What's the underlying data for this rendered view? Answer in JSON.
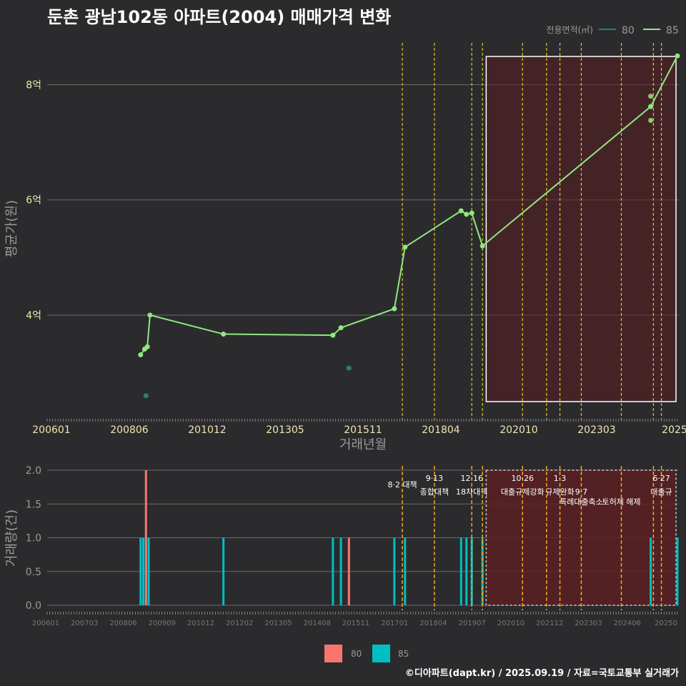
{
  "title": "둔촌 광남102동 아파트(2004) 매매가격 변화",
  "footer": "©디아파트(dapt.kr) / 2025.09.19 / 자료=국토교통부 실거래가",
  "colors": {
    "background": "#2b2b2d",
    "series_80": "#2e7d7a",
    "series_85": "#90e880",
    "bar_80": "#f8766d",
    "bar_85": "#00bfc4",
    "policy_line_yellow": "#e6c619",
    "policy_line_orange": "#f2a81d",
    "highlight_fill": "#5a1e22",
    "grid": "#6a6a6a",
    "tick_text_top": "#f0e6b0",
    "tick_text_bottom": "#9a9a9a"
  },
  "chart_data": [
    {
      "type": "line",
      "xlabel": "거래년월",
      "ylabel": "평균가(원)",
      "legend_title": "전용면적(㎡)",
      "legend_position": "top-right",
      "x_tick_labels": [
        "200601",
        "200806",
        "201012",
        "201305",
        "201511",
        "201804",
        "202010",
        "202303",
        "2025"
      ],
      "y_ticks": [
        {
          "value": 4,
          "label": "4억"
        },
        {
          "value": 6,
          "label": "6억"
        },
        {
          "value": 8,
          "label": "8억"
        }
      ],
      "ylim": [
        2.25,
        8.85
      ],
      "x_range_months": [
        0,
        236
      ],
      "series": [
        {
          "name": "80",
          "points": [
            {
              "x": 37,
              "y": 2.6
            },
            {
              "x": 113,
              "y": 3.08
            }
          ]
        },
        {
          "name": "85",
          "points": [
            {
              "x": 35,
              "y": 3.31
            },
            {
              "x": 36.5,
              "y": 3.41
            },
            {
              "x": 37.5,
              "y": 3.45
            },
            {
              "x": 38.5,
              "y": 4.0
            },
            {
              "x": 66,
              "y": 3.67
            },
            {
              "x": 107,
              "y": 3.65
            },
            {
              "x": 110,
              "y": 3.78
            },
            {
              "x": 130,
              "y": 4.11
            },
            {
              "x": 134,
              "y": 5.18
            },
            {
              "x": 155,
              "y": 5.81
            },
            {
              "x": 157,
              "y": 5.75
            },
            {
              "x": 159,
              "y": 5.77
            },
            {
              "x": 163,
              "y": 5.2
            },
            {
              "x": 226,
              "y": 7.62
            },
            {
              "x": 236,
              "y": 8.5
            }
          ]
        },
        {
          "name": "85-scatter",
          "points": [
            {
              "x": 226,
              "y": 7.8
            },
            {
              "x": 226,
              "y": 7.38
            }
          ]
        }
      ],
      "highlight_range_months": [
        166,
        236
      ]
    },
    {
      "type": "bar",
      "xlabel": "",
      "ylabel": "거래량(건)",
      "x_tick_labels": [
        "200601",
        "200703",
        "200806",
        "200909",
        "201012",
        "201202",
        "201305",
        "201408",
        "201511",
        "201701",
        "201804",
        "201907",
        "202010",
        "202112",
        "202303",
        "202406",
        "20250"
      ],
      "y_ticks": [
        0.0,
        0.5,
        1.0,
        1.5,
        2.0
      ],
      "y_tick_labels": [
        "0.0",
        "0.5",
        "1.0",
        "1.5",
        "2.0"
      ],
      "ylim": [
        0,
        2.0
      ],
      "legend_position": "bottom",
      "series": [
        {
          "name": "80",
          "bars": [
            {
              "x": 37,
              "value": 2
            },
            {
              "x": 113,
              "value": 1
            }
          ]
        },
        {
          "name": "85",
          "bars": [
            {
              "x": 35,
              "value": 1
            },
            {
              "x": 36,
              "value": 1
            },
            {
              "x": 37,
              "value": 1
            },
            {
              "x": 38,
              "value": 1
            },
            {
              "x": 66,
              "value": 1
            },
            {
              "x": 107,
              "value": 1
            },
            {
              "x": 110,
              "value": 1
            },
            {
              "x": 130,
              "value": 1
            },
            {
              "x": 134,
              "value": 1
            },
            {
              "x": 155,
              "value": 1
            },
            {
              "x": 157,
              "value": 1
            },
            {
              "x": 159,
              "value": 1
            },
            {
              "x": 163,
              "value": 1
            },
            {
              "x": 226,
              "value": 1
            },
            {
              "x": 236,
              "value": 1
            }
          ]
        }
      ],
      "policies": [
        {
          "x": 133,
          "date": "",
          "label": "8·2 대책"
        },
        {
          "x": 145,
          "date": "9·13",
          "label": "종합대책"
        },
        {
          "x": 159,
          "date": "12·16",
          "label": "18차대책"
        },
        {
          "x": 163,
          "date": "",
          "label": ""
        },
        {
          "x": 178,
          "date": "10·26",
          "label": "대출규제강화"
        },
        {
          "x": 187,
          "date": "",
          "label": ""
        },
        {
          "x": 192,
          "date": "1·3",
          "label": "규제완화"
        },
        {
          "x": 200,
          "date": "9·7",
          "label": "특례대출축소"
        },
        {
          "x": 215,
          "date": "",
          "label": "토허제 해제"
        },
        {
          "x": 227,
          "date": "",
          "label": ""
        },
        {
          "x": 230,
          "date": "6·27",
          "label": "대출규"
        }
      ],
      "highlight_range_months": [
        166,
        236
      ]
    }
  ],
  "legend_bottom": [
    {
      "name": "80"
    },
    {
      "name": "85"
    }
  ]
}
